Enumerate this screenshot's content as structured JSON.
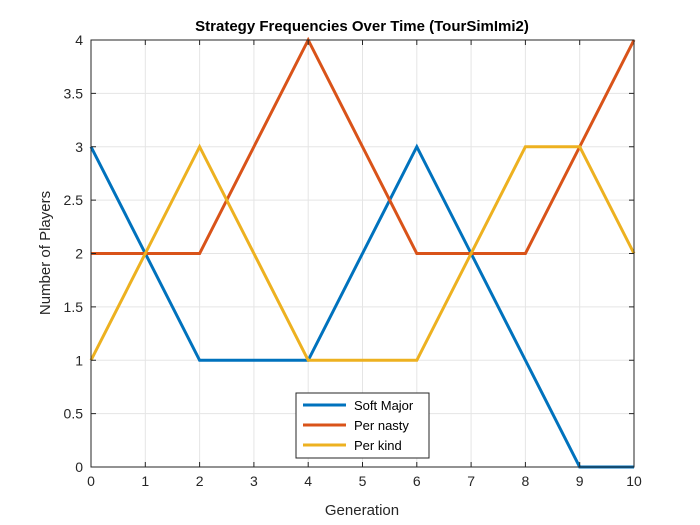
{
  "chart_data": {
    "type": "line",
    "title": "Strategy Frequencies Over Time (TourSimImi2)",
    "xlabel": "Generation",
    "ylabel": "Number of Players",
    "xlim": [
      0,
      10
    ],
    "ylim": [
      0,
      4
    ],
    "x": [
      0,
      1,
      2,
      3,
      4,
      5,
      6,
      7,
      8,
      9,
      10
    ],
    "xticks": [
      "0",
      "1",
      "2",
      "3",
      "4",
      "5",
      "6",
      "7",
      "8",
      "9",
      "10"
    ],
    "yticks": [
      "0",
      "0.5",
      "1",
      "1.5",
      "2",
      "2.5",
      "3",
      "3.5",
      "4"
    ],
    "grid": true,
    "legend_position": "bottom-center",
    "series": [
      {
        "name": "Soft Major",
        "color": "#0072BD",
        "values": [
          3,
          2,
          1,
          1,
          1,
          2,
          3,
          2,
          1,
          0,
          0
        ]
      },
      {
        "name": "Per nasty",
        "color": "#D95319",
        "values": [
          2,
          2,
          2,
          3,
          4,
          3,
          2,
          2,
          2,
          3,
          4
        ]
      },
      {
        "name": "Per kind",
        "color": "#EDB120",
        "values": [
          1,
          2,
          3,
          2,
          1,
          1,
          1,
          2,
          3,
          3,
          2
        ]
      }
    ]
  }
}
